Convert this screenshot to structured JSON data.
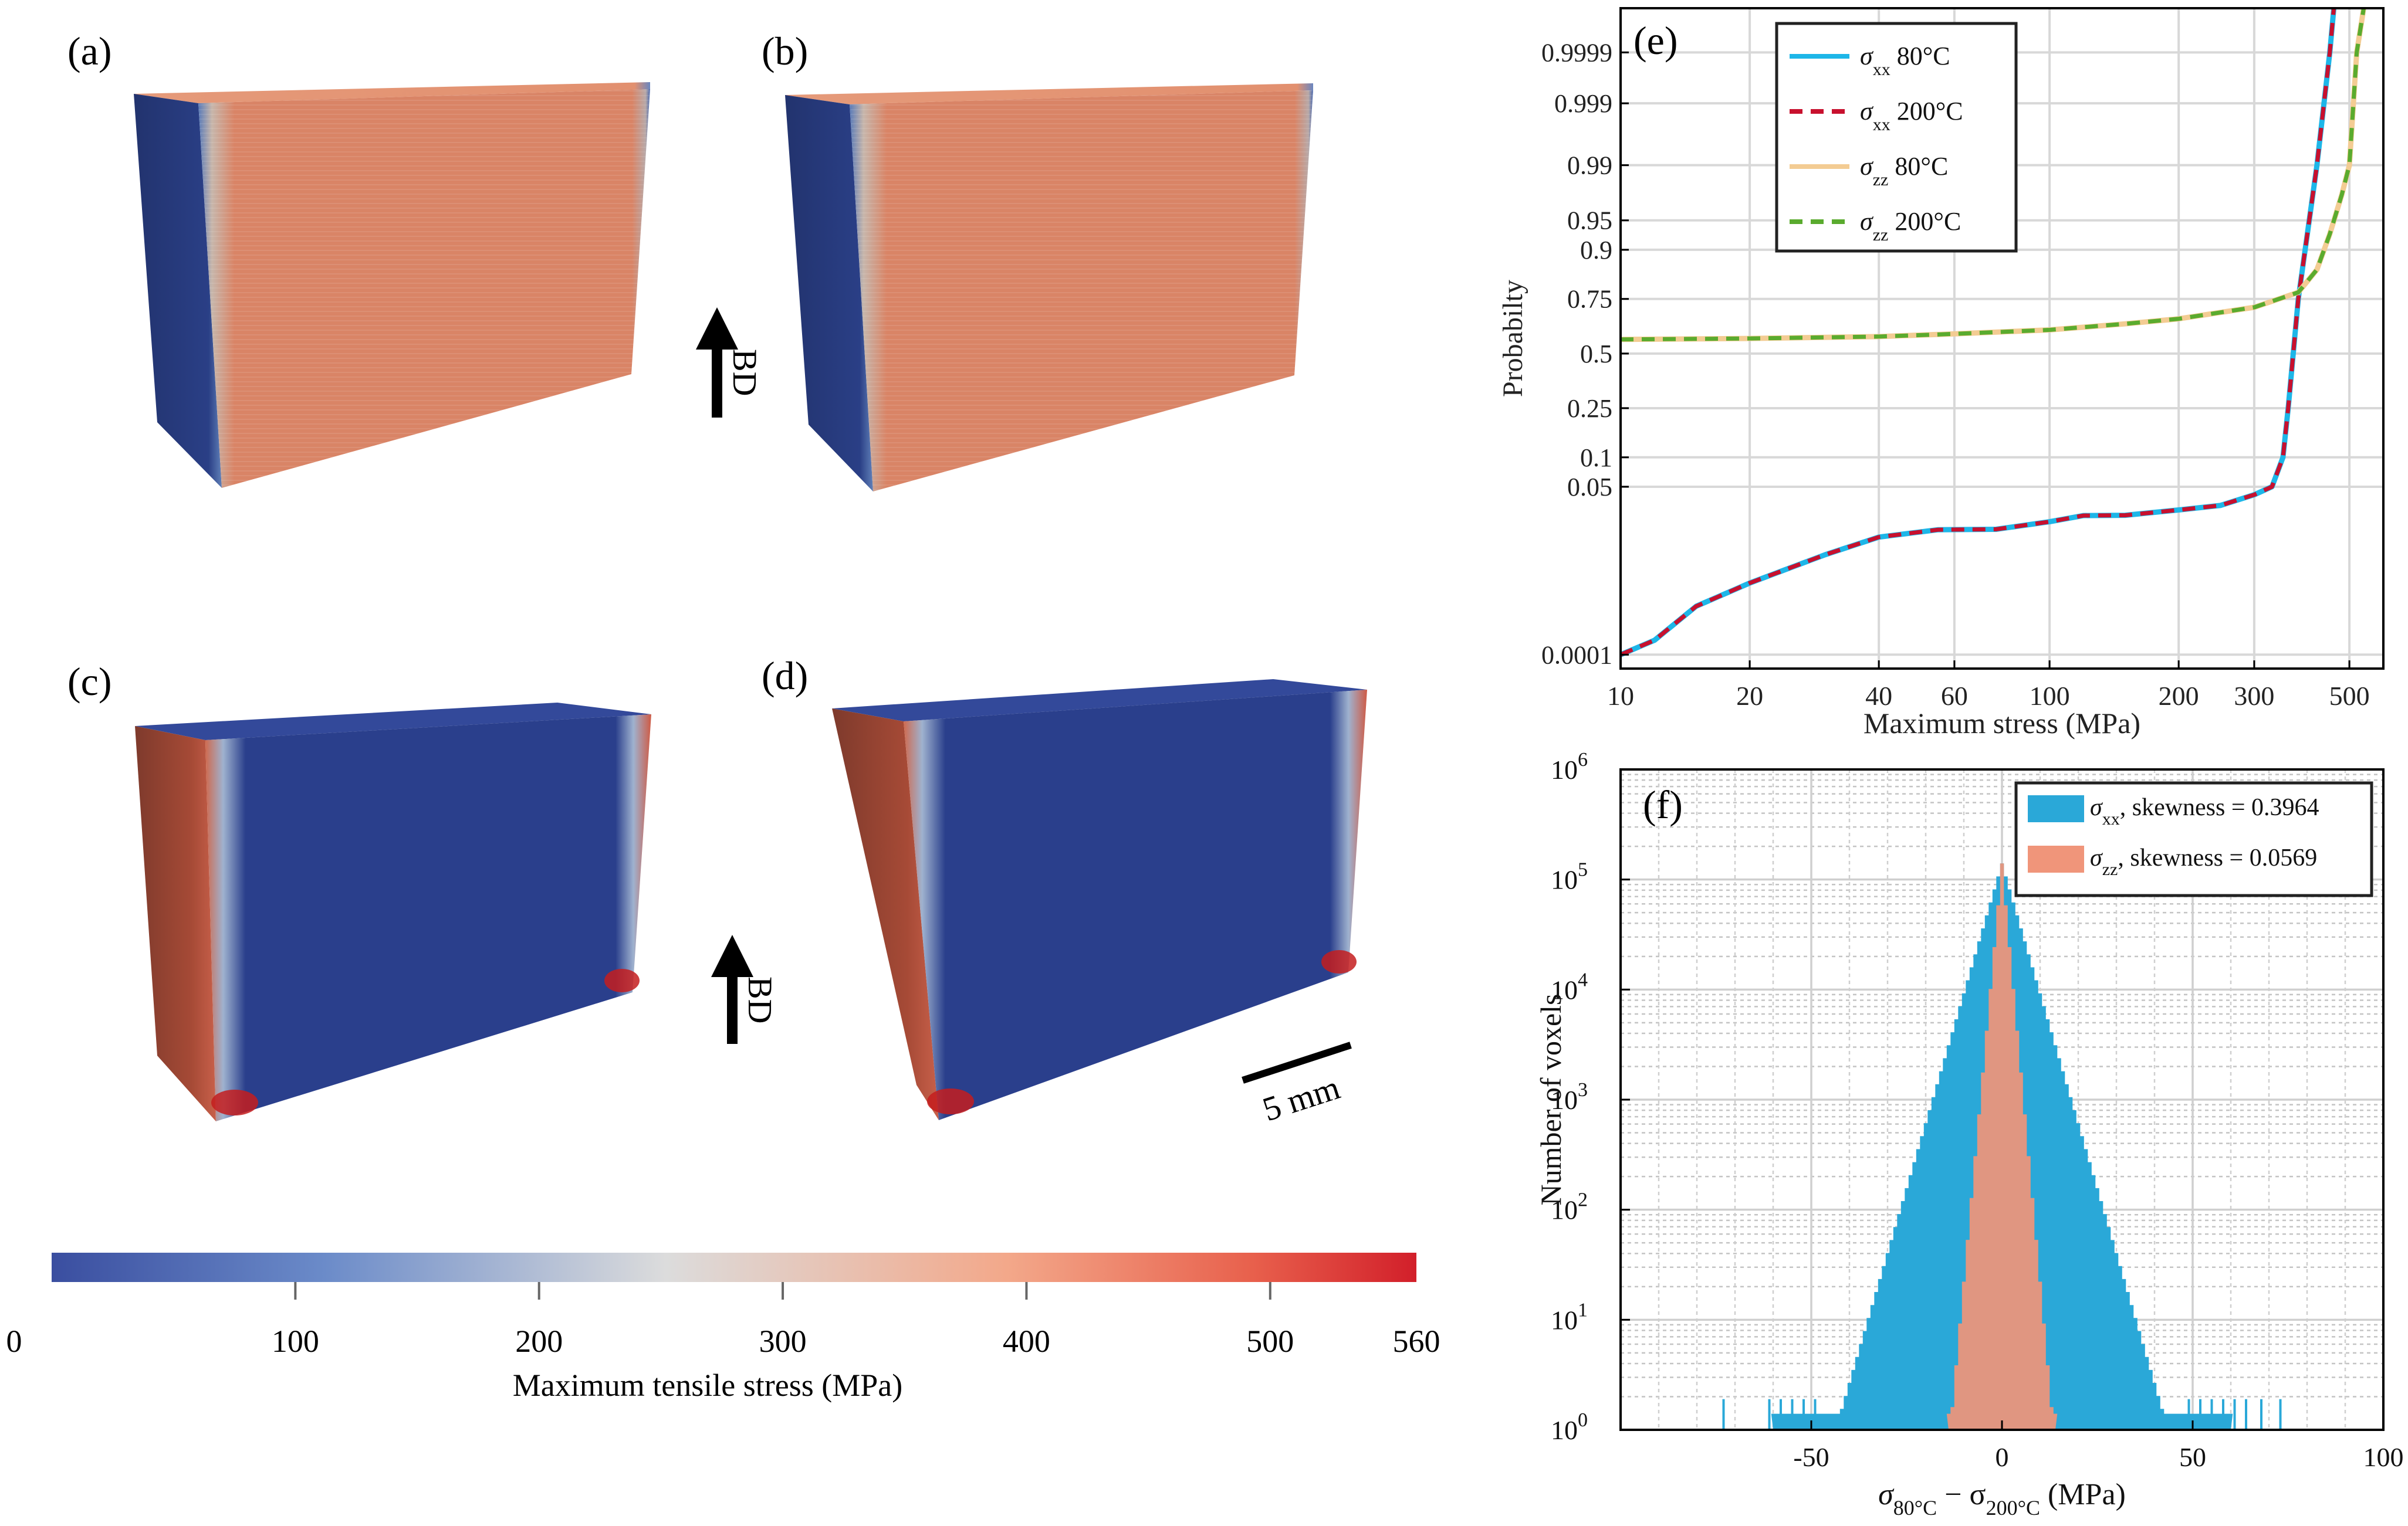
{
  "figure": {
    "panels": {
      "a": "(a)",
      "b": "(b)",
      "c": "(c)",
      "d": "(d)",
      "e": "(e)",
      "f": "(f)"
    },
    "build_direction_label": "BD",
    "scale_bar_label": "5 mm",
    "colorbar": {
      "title": "Maximum tensile stress (MPa)",
      "tick_labels": [
        "0",
        "100",
        "200",
        "300",
        "400",
        "500",
        "560"
      ],
      "tick_values": [
        0,
        100,
        200,
        300,
        400,
        500,
        560
      ],
      "range": [
        0,
        560
      ],
      "colors": {
        "low": "#3a4ea0",
        "mid": "#dcdcdc",
        "high": "#d21f2a"
      }
    }
  },
  "chart_data": [
    {
      "id": "e",
      "type": "line",
      "xlabel": "Maximum stress (MPa)",
      "ylabel": "Probabilty",
      "xscale": "log",
      "yscale": "normal-probability",
      "xlim": [
        10,
        600
      ],
      "x_ticks": [
        10,
        20,
        40,
        60,
        100,
        200,
        300,
        500
      ],
      "x_tick_labels": [
        "10",
        "20",
        "40",
        "60",
        "100",
        "200",
        "300",
        "500"
      ],
      "y_ticks": [
        0.0001,
        0.05,
        0.1,
        0.25,
        0.5,
        0.75,
        0.9,
        0.95,
        0.99,
        0.999,
        0.9999
      ],
      "y_tick_labels": [
        "0.0001",
        "0.05",
        "0.1",
        "0.25",
        "0.5",
        "0.75",
        "0.9",
        "0.95",
        "0.99",
        "0.999",
        "0.9999"
      ],
      "grid": true,
      "legend_position": "top-left",
      "series": [
        {
          "name_symbol": "σ",
          "name_sub": "xx",
          "name_suffix": " 80°C",
          "color": "#1db6e8",
          "dash": "solid",
          "x": [
            10,
            12,
            15,
            20,
            30,
            40,
            55,
            75,
            100,
            120,
            150,
            200,
            250,
            300,
            330,
            350,
            360,
            380,
            420,
            450,
            460
          ],
          "y": [
            0.0001,
            0.0002,
            0.0009,
            0.0023,
            0.0065,
            0.0117,
            0.0148,
            0.015,
            0.0189,
            0.0227,
            0.0229,
            0.0267,
            0.0303,
            0.0406,
            0.05,
            0.1,
            0.25,
            0.75,
            0.99,
            0.9999,
            0.99999
          ]
        },
        {
          "name_symbol": "σ",
          "name_sub": "xx",
          "name_suffix": " 200°C",
          "color": "#c8102e",
          "dash": "dashed",
          "x": [
            10,
            12,
            15,
            20,
            30,
            40,
            55,
            75,
            100,
            120,
            150,
            200,
            250,
            300,
            330,
            350,
            360,
            380,
            420,
            450,
            460
          ],
          "y": [
            0.0001,
            0.0002,
            0.0009,
            0.0023,
            0.0065,
            0.0117,
            0.0148,
            0.015,
            0.0189,
            0.0227,
            0.0229,
            0.0267,
            0.0303,
            0.0406,
            0.05,
            0.1,
            0.25,
            0.75,
            0.99,
            0.9999,
            0.99999
          ]
        },
        {
          "name_symbol": "σ",
          "name_sub": "zz",
          "name_suffix": " 80°C",
          "color": "#f3cc93",
          "dash": "solid",
          "x": [
            10,
            20,
            40,
            60,
            100,
            150,
            200,
            300,
            380,
            420,
            450,
            480,
            500,
            520,
            540
          ],
          "y": [
            0.569,
            0.574,
            0.583,
            0.596,
            0.615,
            0.643,
            0.666,
            0.716,
            0.775,
            0.85,
            0.93,
            0.975,
            0.99,
            0.9999,
            0.99999
          ]
        },
        {
          "name_symbol": "σ",
          "name_sub": "zz",
          "name_suffix": " 200°C",
          "color": "#5aab2e",
          "dash": "dashed",
          "x": [
            10,
            20,
            40,
            60,
            100,
            150,
            200,
            300,
            380,
            420,
            450,
            480,
            500,
            520,
            540
          ],
          "y": [
            0.569,
            0.574,
            0.583,
            0.596,
            0.615,
            0.643,
            0.666,
            0.716,
            0.775,
            0.85,
            0.93,
            0.975,
            0.99,
            0.9999,
            0.99999
          ]
        }
      ]
    },
    {
      "id": "f",
      "type": "histogram",
      "xlabel_symbol": "σ",
      "xlabel_sub1": "80°C",
      "xlabel_minus": " − σ",
      "xlabel_sub2": "200°C",
      "xlabel_unit": " (MPa)",
      "ylabel": "Number of voxels",
      "xlim": [
        -100,
        100
      ],
      "yscale": "log",
      "ylim": [
        1,
        1000000
      ],
      "x_ticks": [
        -50,
        0,
        50,
        100
      ],
      "x_tick_labels": [
        "-50",
        "0",
        "50",
        "100"
      ],
      "y_tick_base": "10",
      "y_tick_exponents": [
        "0",
        "1",
        "2",
        "3",
        "4",
        "5",
        "6"
      ],
      "grid": true,
      "legend_position": "top-right",
      "series": [
        {
          "name_symbol": "σ",
          "name_sub": "xx",
          "name_suffix": ", skewness = 0.3964",
          "color": "#2aa8d8",
          "peak": 140000,
          "decay_per_mpa": 0.118,
          "extent": 60
        },
        {
          "name_symbol": "σ",
          "name_sub": "zz",
          "name_suffix": ", skewness = 0.0569",
          "color": "#f0957a",
          "peak": 140000,
          "decay_per_mpa": 0.38,
          "extent": 14
        }
      ]
    }
  ]
}
